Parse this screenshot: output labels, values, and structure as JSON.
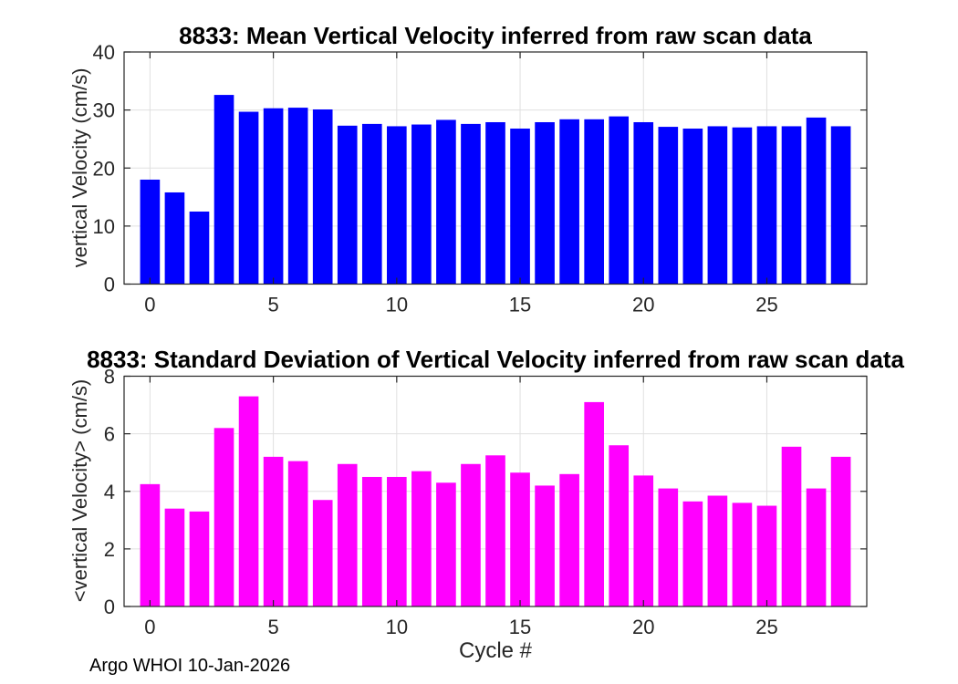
{
  "footer": {
    "text": "Argo WHOI 10-Jan-2026"
  },
  "colors": {
    "background": "#ffffff",
    "axis": "#262626",
    "tick_label": "#262626",
    "grid": "#e0e0e0",
    "mean_bar": "#0000ff",
    "std_bar": "#ff00ff"
  },
  "chart_data": [
    {
      "type": "bar",
      "title": "8833: Mean Vertical Velocity inferred from raw scan data",
      "ylabel": "vertical Velocity (cm/s)",
      "xlabel": "",
      "bar_color": "#0000ff",
      "grid": true,
      "tick_dir": "in",
      "legend": "none",
      "xlim": [
        -1.05,
        29.05
      ],
      "ylim": [
        0,
        40
      ],
      "xticks": [
        0,
        5,
        10,
        15,
        20,
        25
      ],
      "yticks": [
        0,
        10,
        20,
        30,
        40
      ],
      "categories": [
        0,
        1,
        2,
        3,
        4,
        5,
        6,
        7,
        8,
        9,
        10,
        11,
        12,
        13,
        14,
        15,
        16,
        17,
        18,
        19,
        20,
        21,
        22,
        23,
        24,
        25,
        26,
        27,
        28
      ],
      "values": [
        18.0,
        15.8,
        12.5,
        32.6,
        29.7,
        30.3,
        30.4,
        30.1,
        27.3,
        27.6,
        27.2,
        27.5,
        28.3,
        27.6,
        27.9,
        26.8,
        27.9,
        28.4,
        28.4,
        28.9,
        27.9,
        27.1,
        26.8,
        27.2,
        27.0,
        27.2,
        27.2,
        28.7,
        27.2
      ]
    },
    {
      "type": "bar",
      "title": "8833: Standard Deviation of Vertical Velocity inferred from raw scan data",
      "ylabel": "<vertical Velocity> (cm/s)",
      "xlabel": "Cycle #",
      "bar_color": "#ff00ff",
      "grid": true,
      "tick_dir": "in",
      "legend": "none",
      "xlim": [
        -1.05,
        29.05
      ],
      "ylim": [
        0,
        8
      ],
      "xticks": [
        0,
        5,
        10,
        15,
        20,
        25
      ],
      "yticks": [
        0,
        2,
        4,
        6,
        8
      ],
      "categories": [
        0,
        1,
        2,
        3,
        4,
        5,
        6,
        7,
        8,
        9,
        10,
        11,
        12,
        13,
        14,
        15,
        16,
        17,
        18,
        19,
        20,
        21,
        22,
        23,
        24,
        25,
        26,
        27,
        28
      ],
      "values": [
        4.25,
        3.4,
        3.3,
        6.2,
        7.3,
        5.2,
        5.05,
        3.7,
        4.95,
        4.5,
        4.5,
        4.7,
        4.3,
        4.95,
        5.25,
        4.65,
        4.2,
        4.6,
        7.1,
        5.6,
        4.55,
        4.1,
        3.65,
        3.85,
        3.6,
        3.5,
        5.55,
        4.1,
        5.2
      ]
    }
  ]
}
